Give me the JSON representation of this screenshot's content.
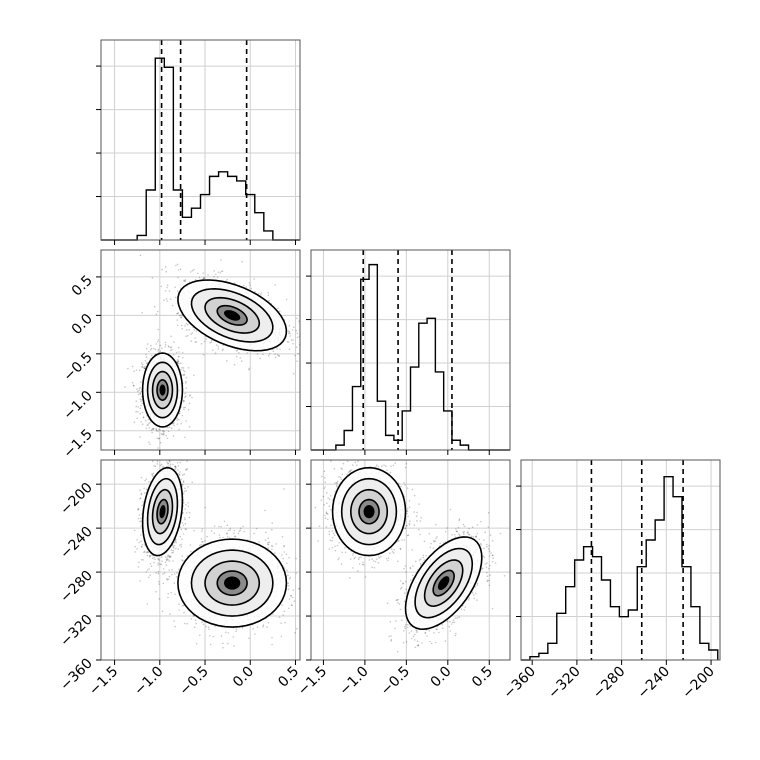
{
  "chart_data": [
    {
      "type": "histogram",
      "panel": "p0 (diagonal 1)",
      "title": "",
      "xlim": [
        -1.65,
        0.55
      ],
      "x_ticks": [
        "−1.5",
        "−1.0",
        "−0.5",
        "0.0",
        "0.5"
      ],
      "x_tick_values": [
        -1.5,
        -1.0,
        -0.5,
        0.0,
        0.5
      ],
      "bin_edges": [
        -1.65,
        -1.55,
        -1.45,
        -1.35,
        -1.25,
        -1.15,
        -1.05,
        -0.95,
        -0.85,
        -0.75,
        -0.65,
        -0.55,
        -0.45,
        -0.35,
        -0.25,
        -0.15,
        -0.05,
        0.05,
        0.15,
        0.25,
        0.35,
        0.45,
        0.55
      ],
      "counts": [
        0,
        0,
        0,
        0,
        1,
        11,
        40,
        38,
        11,
        5,
        7,
        10,
        14,
        15,
        14,
        13,
        10,
        6,
        2,
        0,
        0,
        0
      ],
      "ylim": [
        0,
        44
      ],
      "quantiles": [
        -0.98,
        -0.77,
        -0.04
      ]
    },
    {
      "type": "histogram",
      "panel": "p1 (diagonal 2)",
      "xlim": [
        -1.65,
        0.75
      ],
      "x_ticks": [
        "−1.5",
        "−1.0",
        "−0.5",
        "0.0",
        "0.5"
      ],
      "x_tick_values": [
        -1.5,
        -1.0,
        -0.5,
        0.0,
        0.5
      ],
      "bin_edges": [
        -1.65,
        -1.55,
        -1.45,
        -1.35,
        -1.25,
        -1.15,
        -1.05,
        -0.95,
        -0.85,
        -0.75,
        -0.65,
        -0.55,
        -0.45,
        -0.35,
        -0.25,
        -0.15,
        -0.05,
        0.05,
        0.15,
        0.25,
        0.35,
        0.45,
        0.55,
        0.65,
        0.75
      ],
      "counts": [
        0,
        0,
        0,
        1,
        4,
        13,
        35,
        38,
        10,
        3,
        2,
        8,
        17,
        26,
        27,
        16,
        8,
        2,
        1,
        0,
        0,
        0,
        0,
        0
      ],
      "ylim": [
        0,
        41
      ],
      "quantiles": [
        -1.02,
        -0.6,
        0.05
      ]
    },
    {
      "type": "histogram",
      "panel": "p2 (diagonal 3)",
      "xlim": [
        -370,
        -192
      ],
      "x_ticks": [
        "−360",
        "−320",
        "−280",
        "−240",
        "−200"
      ],
      "x_tick_values": [
        -360,
        -320,
        -280,
        -240,
        -200
      ],
      "bin_edges": [
        -370,
        -362,
        -354,
        -346,
        -338,
        -330,
        -322,
        -314,
        -306,
        -298,
        -290,
        -282,
        -274,
        -266,
        -258,
        -250,
        -242,
        -234,
        -226,
        -218,
        -210,
        -202,
        -194
      ],
      "counts": [
        0,
        1,
        2,
        5,
        14,
        22,
        30,
        34,
        31,
        24,
        16,
        13,
        15,
        28,
        36,
        42,
        55,
        49,
        28,
        16,
        5,
        3
      ],
      "ylim": [
        0,
        60
      ],
      "quantiles": [
        -307,
        -262,
        -225
      ]
    },
    {
      "type": "scatter-contour",
      "panel": "p1 vs p0",
      "xlim": [
        -1.65,
        0.55
      ],
      "ylim": [
        -1.75,
        0.85
      ],
      "x_ticks": [],
      "y_ticks": [
        "0.5",
        "0.0",
        "−0.5",
        "−1.0",
        "−1.5"
      ],
      "y_tick_values": [
        0.5,
        0.0,
        -0.5,
        -1.0,
        -1.5
      ],
      "clusters": [
        {
          "x": -0.97,
          "y": -0.97,
          "sx": 0.11,
          "sy": 0.24,
          "rho": 0.0
        },
        {
          "x": -0.2,
          "y": 0.0,
          "sx": 0.3,
          "sy": 0.23,
          "rho": -0.45
        }
      ]
    },
    {
      "type": "scatter-contour",
      "panel": "p2 vs p0",
      "xlim": [
        -1.65,
        0.55
      ],
      "ylim": [
        -360,
        -178
      ],
      "x_ticks": [
        "−1.5",
        "−1.0",
        "−0.5",
        "0.0",
        "0.5"
      ],
      "x_tick_values": [
        -1.5,
        -1.0,
        -0.5,
        0.0,
        0.5
      ],
      "y_ticks": [
        "−200",
        "−240",
        "−280",
        "−320",
        "−360"
      ],
      "y_tick_values": [
        -200,
        -240,
        -280,
        -320,
        -360
      ],
      "clusters": [
        {
          "x": -0.97,
          "y": -225,
          "sx": 0.11,
          "sy": 20,
          "rho": 0.25
        },
        {
          "x": -0.2,
          "y": -290,
          "sx": 0.3,
          "sy": 20,
          "rho": 0.0
        }
      ]
    },
    {
      "type": "scatter-contour",
      "panel": "p2 vs p1",
      "xlim": [
        -1.65,
        0.75
      ],
      "ylim": [
        -360,
        -178
      ],
      "x_ticks": [
        "−1.5",
        "−1.0",
        "−0.5",
        "0.0",
        "0.5"
      ],
      "x_tick_values": [
        -1.5,
        -1.0,
        -0.5,
        0.0,
        0.5
      ],
      "y_ticks": [],
      "clusters": [
        {
          "x": -0.95,
          "y": -225,
          "sx": 0.22,
          "sy": 20,
          "rho": 0.0
        },
        {
          "x": -0.05,
          "y": -290,
          "sx": 0.23,
          "sy": 21,
          "rho": 0.55
        }
      ]
    }
  ]
}
